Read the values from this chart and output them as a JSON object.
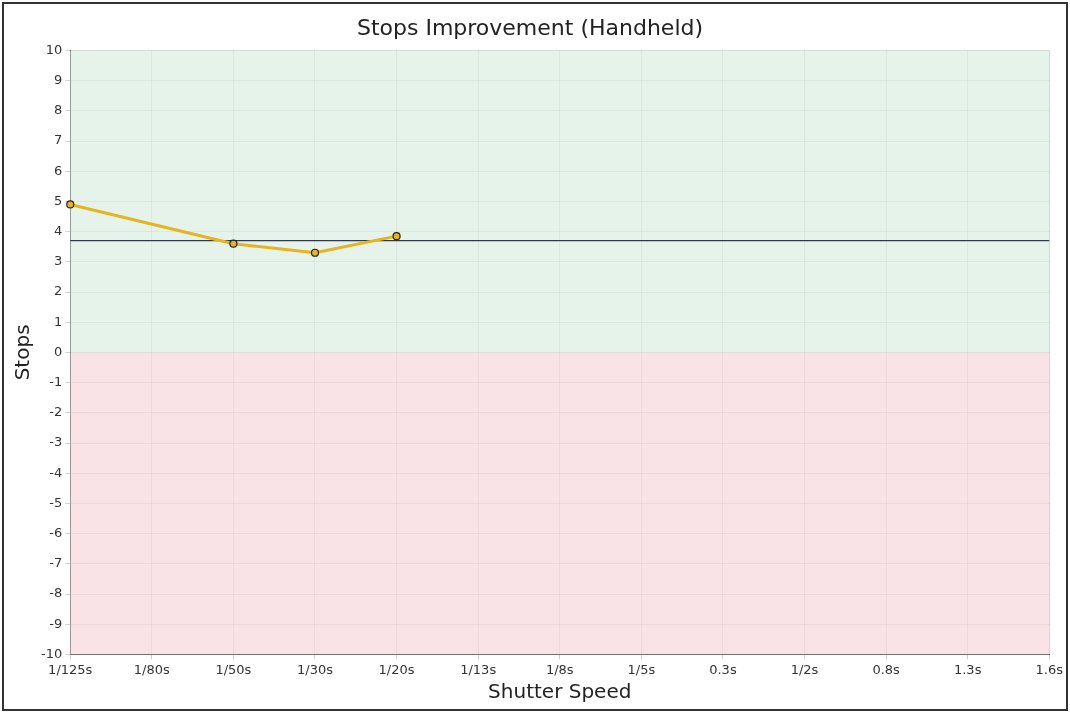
{
  "chart_data": {
    "type": "line",
    "title": "Stops Improvement (Handheld)",
    "xlabel": "Shutter Speed",
    "ylabel": "Stops",
    "categories": [
      "1/125s",
      "1/80s",
      "1/50s",
      "1/30s",
      "1/20s",
      "1/13s",
      "1/8s",
      "1/5s",
      "0.3s",
      "1/2s",
      "0.8s",
      "1.3s",
      "1.6s"
    ],
    "series": [
      {
        "color": "#e6b422",
        "values": [
          4.9,
          null,
          3.6,
          3.3,
          3.85,
          null,
          null,
          null,
          null,
          null,
          null,
          null,
          null
        ]
      }
    ],
    "ylim": [
      -10,
      10
    ],
    "yticks": [
      -10,
      -9,
      -8,
      -7,
      -6,
      -5,
      -4,
      -3,
      -2,
      -1,
      0,
      1,
      2,
      3,
      4,
      5,
      6,
      7,
      8,
      9,
      10
    ],
    "ref_lines": [
      {
        "axis": "y",
        "value": 3.7,
        "color": "#2f3b4a"
      }
    ],
    "bands": [
      {
        "axis": "y",
        "from": 0,
        "to": 10,
        "color": "#dcefe3"
      },
      {
        "axis": "y",
        "from": -10,
        "to": 0,
        "color": "#f8d9de"
      }
    ],
    "grid": true,
    "legend": false,
    "marker": "circle",
    "line_style": "solid"
  }
}
